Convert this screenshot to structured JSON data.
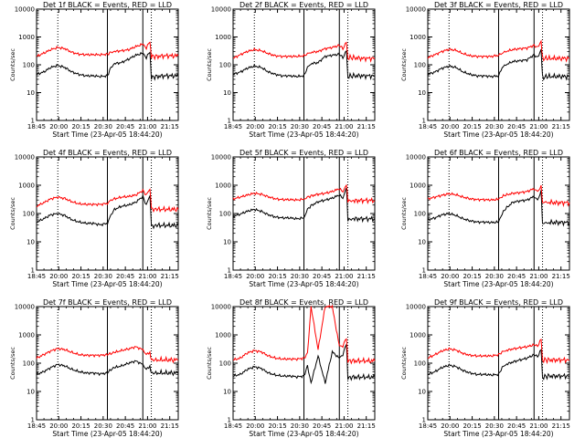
{
  "chart_data": [
    {
      "type": "line",
      "title": "Det 1f BLACK = Events, RED = LLD",
      "xlabel": "Start Time (23-Apr-05 18:44:20)",
      "ylabel": "Counts/sec",
      "x": [
        0,
        10,
        20,
        30,
        40,
        50,
        60,
        70,
        80,
        90,
        100,
        105,
        110,
        120,
        130,
        140,
        150,
        155,
        160,
        162,
        170,
        180,
        190,
        200
      ],
      "series": [
        {
          "name": "BLACK = Events",
          "color": "#000000",
          "values": [
            45,
            55,
            80,
            95,
            80,
            55,
            45,
            40,
            40,
            38,
            40,
            80,
            110,
            120,
            160,
            220,
            260,
            180,
            300,
            35,
            38,
            40,
            40,
            40
          ]
        },
        {
          "name": "RED = LLD",
          "color": "#ff0000",
          "values": [
            200,
            260,
            350,
            420,
            380,
            280,
            240,
            230,
            230,
            230,
            240,
            280,
            300,
            320,
            350,
            450,
            550,
            400,
            700,
            200,
            200,
            210,
            210,
            210
          ]
        }
      ]
    },
    {
      "type": "line",
      "title": "Det 2f BLACK = Events, RED = LLD",
      "xlabel": "Start Time (23-Apr-05 18:44:20)",
      "ylabel": "Counts/sec",
      "x": [
        0,
        10,
        20,
        30,
        40,
        50,
        60,
        70,
        80,
        90,
        100,
        105,
        110,
        120,
        130,
        140,
        150,
        155,
        160,
        162,
        170,
        180,
        190,
        200
      ],
      "series": [
        {
          "name": "BLACK = Events",
          "color": "#000000",
          "values": [
            45,
            55,
            75,
            90,
            80,
            55,
            45,
            40,
            40,
            38,
            40,
            80,
            110,
            120,
            200,
            220,
            240,
            180,
            320,
            38,
            40,
            40,
            40,
            40
          ]
        },
        {
          "name": "RED = LLD",
          "color": "#ff0000",
          "values": [
            170,
            230,
            300,
            350,
            320,
            250,
            210,
            200,
            200,
            200,
            210,
            250,
            280,
            300,
            380,
            420,
            500,
            380,
            650,
            180,
            180,
            170,
            170,
            170
          ]
        }
      ]
    },
    {
      "type": "line",
      "title": "Det 3f BLACK = Events, RED = LLD",
      "xlabel": "Start Time (23-Apr-05 18:44:20)",
      "ylabel": "Counts/sec",
      "x": [
        0,
        10,
        20,
        30,
        40,
        50,
        60,
        70,
        80,
        90,
        100,
        105,
        110,
        120,
        130,
        140,
        150,
        155,
        160,
        162,
        170,
        180,
        190,
        200
      ],
      "series": [
        {
          "name": "BLACK = Events",
          "color": "#000000",
          "values": [
            45,
            55,
            75,
            90,
            80,
            55,
            45,
            40,
            40,
            38,
            40,
            80,
            100,
            130,
            140,
            150,
            230,
            180,
            350,
            35,
            38,
            38,
            38,
            38
          ]
        },
        {
          "name": "RED = LLD",
          "color": "#ff0000",
          "values": [
            180,
            230,
            300,
            360,
            330,
            250,
            210,
            200,
            200,
            200,
            220,
            260,
            300,
            350,
            380,
            400,
            500,
            420,
            700,
            170,
            170,
            170,
            170,
            170
          ]
        }
      ]
    },
    {
      "type": "line",
      "title": "Det 4f BLACK = Events, RED = LLD",
      "xlabel": "Start Time (23-Apr-05 18:44:20)",
      "ylabel": "Counts/sec",
      "x": [
        0,
        10,
        20,
        30,
        40,
        50,
        60,
        70,
        80,
        90,
        100,
        105,
        110,
        120,
        130,
        140,
        150,
        155,
        160,
        162,
        170,
        180,
        190,
        200
      ],
      "series": [
        {
          "name": "BLACK = Events",
          "color": "#000000",
          "values": [
            50,
            65,
            90,
            100,
            85,
            60,
            50,
            45,
            45,
            40,
            45,
            90,
            140,
            180,
            200,
            250,
            400,
            200,
            450,
            35,
            38,
            38,
            38,
            38
          ]
        },
        {
          "name": "RED = LLD",
          "color": "#ff0000",
          "values": [
            180,
            240,
            330,
            380,
            340,
            260,
            220,
            210,
            210,
            210,
            230,
            300,
            330,
            380,
            400,
            450,
            650,
            450,
            750,
            140,
            140,
            140,
            140,
            140
          ]
        }
      ]
    },
    {
      "type": "line",
      "title": "Det 5f BLACK = Events, RED = LLD",
      "xlabel": "Start Time (23-Apr-05 18:44:20)",
      "ylabel": "Counts/sec",
      "x": [
        0,
        10,
        20,
        30,
        40,
        50,
        60,
        70,
        80,
        90,
        100,
        105,
        110,
        120,
        130,
        140,
        150,
        155,
        160,
        162,
        170,
        180,
        190,
        200
      ],
      "series": [
        {
          "name": "BLACK = Events",
          "color": "#000000",
          "values": [
            80,
            95,
            120,
            140,
            120,
            90,
            75,
            70,
            70,
            65,
            70,
            140,
            190,
            260,
            300,
            350,
            450,
            350,
            800,
            60,
            65,
            65,
            65,
            65
          ]
        },
        {
          "name": "RED = LLD",
          "color": "#ff0000",
          "values": [
            330,
            380,
            450,
            520,
            480,
            390,
            330,
            310,
            310,
            300,
            320,
            380,
            420,
            480,
            520,
            600,
            750,
            600,
            1000,
            280,
            280,
            290,
            290,
            290
          ]
        }
      ]
    },
    {
      "type": "line",
      "title": "Det 6f BLACK = Events, RED = LLD",
      "xlabel": "Start Time (23-Apr-05 18:44:20)",
      "ylabel": "Counts/sec",
      "x": [
        0,
        10,
        20,
        30,
        40,
        50,
        60,
        70,
        80,
        90,
        100,
        105,
        110,
        120,
        130,
        140,
        150,
        155,
        160,
        162,
        170,
        180,
        190,
        200
      ],
      "series": [
        {
          "name": "BLACK = Events",
          "color": "#000000",
          "values": [
            60,
            70,
            90,
            100,
            85,
            65,
            55,
            50,
            50,
            48,
            50,
            100,
            150,
            250,
            280,
            300,
            400,
            300,
            600,
            45,
            48,
            48,
            48,
            48
          ]
        },
        {
          "name": "RED = LLD",
          "color": "#ff0000",
          "values": [
            330,
            380,
            440,
            500,
            460,
            380,
            330,
            310,
            310,
            300,
            320,
            400,
            450,
            520,
            550,
            600,
            750,
            600,
            900,
            250,
            250,
            240,
            240,
            240
          ]
        }
      ]
    },
    {
      "type": "line",
      "title": "Det 7f BLACK = Events, RED = LLD",
      "xlabel": "Start Time (23-Apr-05 18:44:20)",
      "ylabel": "Counts/sec",
      "x": [
        0,
        10,
        20,
        30,
        40,
        50,
        60,
        70,
        80,
        90,
        100,
        105,
        110,
        120,
        130,
        140,
        150,
        155,
        160,
        162,
        170,
        180,
        190,
        200
      ],
      "series": [
        {
          "name": "BLACK = Events",
          "color": "#000000",
          "values": [
            40,
            50,
            70,
            90,
            80,
            60,
            50,
            45,
            45,
            42,
            45,
            60,
            70,
            80,
            100,
            120,
            90,
            60,
            80,
            45,
            45,
            45,
            45,
            45
          ]
        },
        {
          "name": "RED = LLD",
          "color": "#ff0000",
          "values": [
            150,
            200,
            270,
            330,
            300,
            240,
            200,
            190,
            190,
            190,
            200,
            220,
            240,
            280,
            320,
            380,
            300,
            200,
            250,
            130,
            130,
            130,
            130,
            130
          ]
        }
      ]
    },
    {
      "type": "line",
      "title": "Det 8f BLACK = Events, RED = LLD",
      "xlabel": "Start Time (23-Apr-05 18:44:20)",
      "ylabel": "Counts/sec",
      "x": [
        0,
        10,
        20,
        30,
        40,
        50,
        60,
        70,
        80,
        90,
        100,
        105,
        110,
        120,
        130,
        140,
        150,
        155,
        160,
        162,
        170,
        180,
        190,
        200
      ],
      "series": [
        {
          "name": "BLACK = Events",
          "color": "#000000",
          "values": [
            35,
            40,
            60,
            75,
            65,
            45,
            38,
            35,
            35,
            33,
            35,
            80,
            20,
            180,
            20,
            250,
            150,
            200,
            500,
            30,
            32,
            32,
            32,
            32
          ]
        },
        {
          "name": "RED = LLD",
          "color": "#ff0000",
          "values": [
            130,
            150,
            230,
            280,
            250,
            180,
            150,
            140,
            140,
            140,
            150,
            220,
            10000,
            300,
            10000,
            10000,
            400,
            400,
            800,
            120,
            120,
            120,
            120,
            120
          ]
        }
      ]
    },
    {
      "type": "line",
      "title": "Det 9f BLACK = Events, RED = LLD",
      "xlabel": "Start Time (23-Apr-05 18:44:20)",
      "ylabel": "Counts/sec",
      "x": [
        0,
        10,
        20,
        30,
        40,
        50,
        60,
        70,
        80,
        90,
        100,
        105,
        110,
        120,
        130,
        140,
        150,
        155,
        160,
        162,
        170,
        180,
        190,
        200
      ],
      "series": [
        {
          "name": "BLACK = Events",
          "color": "#000000",
          "values": [
            40,
            50,
            70,
            85,
            75,
            55,
            45,
            40,
            40,
            38,
            40,
            70,
            90,
            110,
            130,
            150,
            200,
            170,
            300,
            32,
            35,
            35,
            35,
            35
          ]
        },
        {
          "name": "RED = LLD",
          "color": "#ff0000",
          "values": [
            150,
            200,
            270,
            320,
            290,
            220,
            190,
            180,
            180,
            180,
            200,
            250,
            280,
            320,
            350,
            380,
            450,
            400,
            700,
            130,
            130,
            130,
            130,
            130
          ]
        }
      ]
    }
  ],
  "axes": {
    "x_ticks": [
      "18:45",
      "20:00",
      "20:15",
      "20:30",
      "20:45",
      "21:00",
      "21:15"
    ],
    "y_ticks": [
      "1",
      "10",
      "100",
      "1000",
      "10000"
    ],
    "ylim": [
      1,
      10000
    ],
    "yscale": "log",
    "markers": {
      "dotted_x": [
        30,
        162
      ],
      "solid_x": [
        100,
        150
      ]
    }
  }
}
